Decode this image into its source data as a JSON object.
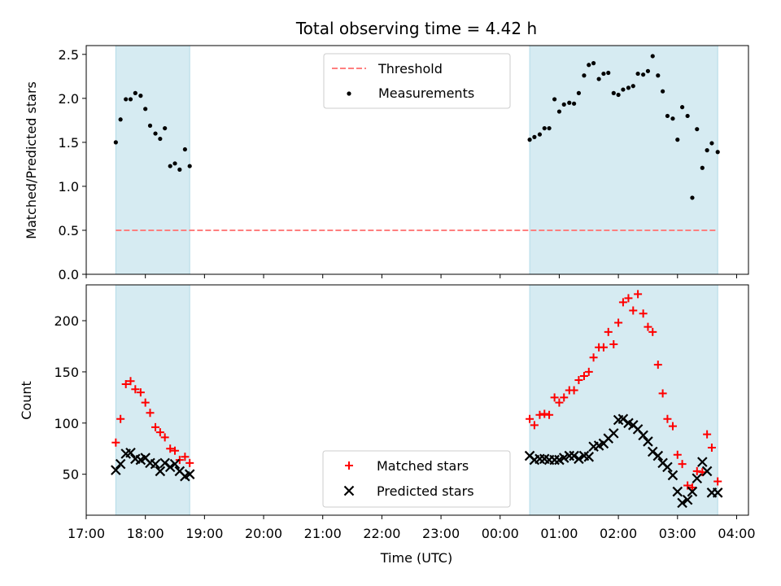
{
  "chart_data": {
    "type": "scatter",
    "title": "Total observing time = 4.42 h",
    "xlabel": "Time (UTC)",
    "x_tick_labels": [
      "17:00",
      "18:00",
      "19:00",
      "20:00",
      "21:00",
      "22:00",
      "23:00",
      "00:00",
      "01:00",
      "02:00",
      "03:00",
      "04:00"
    ],
    "xlim_hours": [
      17.0,
      28.2
    ],
    "observing_windows_hours": [
      [
        17.5,
        18.75
      ],
      [
        24.5,
        27.68
      ]
    ],
    "top": {
      "ylabel": "Matched/Predicted stars",
      "ylim": [
        0,
        2.6
      ],
      "y_tick_labels": [
        "0.0",
        "0.5",
        "1.0",
        "1.5",
        "2.0",
        "2.5"
      ],
      "threshold": 0.5,
      "legend": [
        "Threshold",
        "Measurements"
      ],
      "legend_position": "upper center",
      "measurements": {
        "x": [
          17.5,
          17.58,
          17.67,
          17.75,
          17.83,
          17.92,
          18.0,
          18.08,
          18.17,
          18.25,
          18.33,
          18.42,
          18.5,
          18.58,
          18.67,
          18.75,
          24.5,
          24.58,
          24.67,
          24.75,
          24.83,
          24.92,
          25.0,
          25.08,
          25.17,
          25.25,
          25.33,
          25.42,
          25.5,
          25.58,
          25.67,
          25.75,
          25.83,
          25.92,
          26.0,
          26.08,
          26.17,
          26.25,
          26.33,
          26.42,
          26.5,
          26.58,
          26.67,
          26.75,
          26.83,
          26.92,
          27.0,
          27.08,
          27.17,
          27.25,
          27.33,
          27.42,
          27.5,
          27.58,
          27.68
        ],
        "y": [
          1.5,
          1.76,
          1.99,
          1.99,
          2.06,
          2.03,
          1.88,
          1.69,
          1.6,
          1.54,
          1.66,
          1.23,
          1.26,
          1.19,
          1.42,
          1.23,
          1.53,
          1.56,
          1.59,
          1.66,
          1.66,
          1.99,
          1.85,
          1.93,
          1.95,
          1.94,
          2.06,
          2.26,
          2.38,
          2.4,
          2.22,
          2.28,
          2.29,
          2.06,
          2.04,
          2.1,
          2.12,
          2.14,
          2.28,
          2.27,
          2.31,
          2.48,
          2.26,
          2.08,
          1.8,
          1.77,
          1.53,
          1.9,
          1.8,
          0.87,
          1.65,
          1.21,
          1.41,
          1.49,
          1.39
        ]
      }
    },
    "bottom": {
      "ylabel": "Count",
      "ylim": [
        10,
        235
      ],
      "y_tick_labels": [
        "50",
        "100",
        "150",
        "200"
      ],
      "legend_position": "lower center",
      "series": [
        {
          "name": "Matched stars",
          "marker": "+",
          "color": "#ff0000",
          "x": [
            17.5,
            17.58,
            17.67,
            17.75,
            17.83,
            17.92,
            18.0,
            18.08,
            18.17,
            18.25,
            18.33,
            18.42,
            18.5,
            18.58,
            18.67,
            18.75,
            24.5,
            24.58,
            24.67,
            24.75,
            24.83,
            24.92,
            25.0,
            25.08,
            25.17,
            25.25,
            25.33,
            25.42,
            25.5,
            25.58,
            25.67,
            25.75,
            25.83,
            25.92,
            26.0,
            26.08,
            26.17,
            26.25,
            26.33,
            26.42,
            26.5,
            26.58,
            26.67,
            26.75,
            26.83,
            26.92,
            27.0,
            27.08,
            27.17,
            27.25,
            27.33,
            27.42,
            27.5,
            27.58,
            27.68
          ],
          "values": [
            81,
            104,
            138,
            141,
            133,
            130,
            120,
            110,
            96,
            91,
            86,
            75,
            73,
            64,
            67,
            61,
            104,
            98,
            108,
            109,
            108,
            125,
            120,
            125,
            132,
            132,
            142,
            146,
            150,
            164,
            174,
            174,
            189,
            177,
            198,
            218,
            222,
            210,
            226,
            207,
            194,
            189,
            157,
            129,
            104,
            97,
            69,
            60,
            39,
            37,
            53,
            52,
            89,
            76,
            43
          ]
        },
        {
          "name": "Predicted stars",
          "marker": "x",
          "color": "#000000",
          "x": [
            17.5,
            17.58,
            17.67,
            17.75,
            17.83,
            17.92,
            18.0,
            18.08,
            18.17,
            18.25,
            18.33,
            18.42,
            18.5,
            18.58,
            18.67,
            18.75,
            24.5,
            24.58,
            24.67,
            24.75,
            24.83,
            24.92,
            25.0,
            25.08,
            25.17,
            25.25,
            25.33,
            25.42,
            25.5,
            25.58,
            25.67,
            25.75,
            25.83,
            25.92,
            26.0,
            26.08,
            26.17,
            26.25,
            26.33,
            26.42,
            26.5,
            26.58,
            26.67,
            26.75,
            26.83,
            26.92,
            27.0,
            27.08,
            27.17,
            27.25,
            27.33,
            27.42,
            27.5,
            27.58,
            27.68
          ],
          "values": [
            54,
            60,
            70,
            71,
            65,
            64,
            66,
            61,
            60,
            53,
            61,
            57,
            60,
            53,
            48,
            50,
            68,
            64,
            65,
            65,
            64,
            64,
            64,
            66,
            68,
            68,
            65,
            68,
            67,
            77,
            78,
            80,
            85,
            90,
            103,
            104,
            100,
            98,
            94,
            88,
            82,
            72,
            68,
            61,
            57,
            49,
            33,
            22,
            25,
            33,
            46,
            62,
            53,
            32,
            32
          ]
        }
      ]
    }
  }
}
